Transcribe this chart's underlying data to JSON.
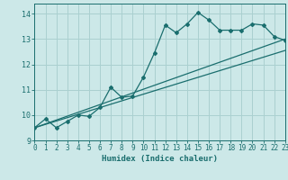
{
  "xlabel": "Humidex (Indice chaleur)",
  "xlim": [
    0,
    23
  ],
  "ylim": [
    9.0,
    14.4
  ],
  "yticks": [
    9,
    10,
    11,
    12,
    13,
    14
  ],
  "xticks": [
    0,
    1,
    2,
    3,
    4,
    5,
    6,
    7,
    8,
    9,
    10,
    11,
    12,
    13,
    14,
    15,
    16,
    17,
    18,
    19,
    20,
    21,
    22,
    23
  ],
  "bg_color": "#cce8e8",
  "grid_color": "#aad0d0",
  "line_color": "#1a6e6e",
  "line1_x": [
    0,
    1,
    2,
    3,
    4,
    5,
    6,
    7,
    8,
    9,
    10,
    11,
    12,
    13,
    14,
    15,
    16,
    17,
    18,
    19,
    20,
    21,
    22,
    23
  ],
  "line1_y": [
    9.5,
    9.85,
    9.5,
    9.75,
    10.0,
    9.95,
    10.3,
    11.1,
    10.7,
    10.75,
    11.5,
    12.45,
    13.55,
    13.25,
    13.6,
    14.05,
    13.75,
    13.35,
    13.35,
    13.35,
    13.6,
    13.55,
    13.1,
    12.95
  ],
  "line2_x": [
    0,
    23
  ],
  "line2_y": [
    9.5,
    13.0
  ],
  "line3_x": [
    0,
    23
  ],
  "line3_y": [
    9.5,
    12.55
  ],
  "figsize": [
    3.2,
    2.0
  ],
  "dpi": 100
}
